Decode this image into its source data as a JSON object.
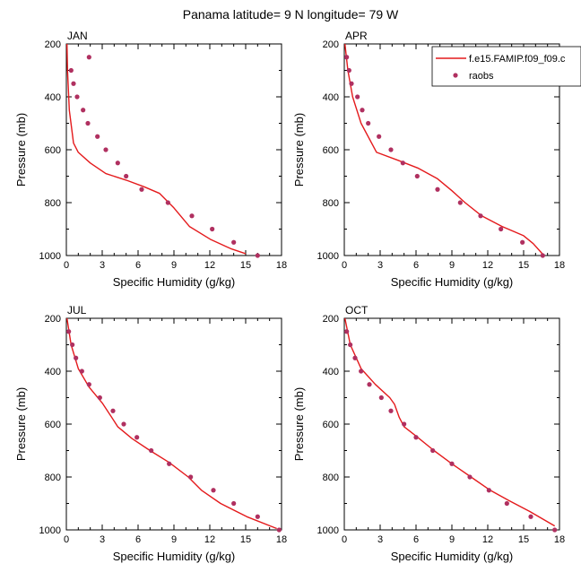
{
  "figure": {
    "title": "Panama  latitude= 9 N longitude= 79 W"
  },
  "legend": {
    "placement": "top-right",
    "entries": [
      {
        "label": "f.e15.FAMIP.f09_f09.c",
        "kind": "line",
        "color": "#e41a1c"
      },
      {
        "label": "raobs",
        "kind": "marker",
        "color": "#b03060"
      }
    ]
  },
  "chart_data": [
    {
      "type": "line",
      "panel": "JAN",
      "title": "JAN",
      "xlabel": "Specific Humidity (g/kg)",
      "ylabel": "Pressure (mb)",
      "xlim": [
        0,
        18
      ],
      "ylim": [
        1000,
        200
      ],
      "y_reversed": true,
      "xticks": [
        0,
        3,
        6,
        9,
        12,
        15,
        18
      ],
      "yticks": [
        200,
        400,
        600,
        800,
        1000
      ],
      "grid": false,
      "series": [
        {
          "name": "f.e15.FAMIP.f09_f09.c",
          "style": "line",
          "color": "#e41a1c",
          "points": [
            [
              0.05,
              200
            ],
            [
              0.1,
              300
            ],
            [
              0.25,
              450
            ],
            [
              0.6,
              575
            ],
            [
              1.0,
              610
            ],
            [
              2.0,
              650
            ],
            [
              3.3,
              690
            ],
            [
              5.0,
              715
            ],
            [
              6.5,
              740
            ],
            [
              7.8,
              765
            ],
            [
              9.0,
              820
            ],
            [
              10.3,
              890
            ],
            [
              12.1,
              940
            ],
            [
              13.8,
              975
            ],
            [
              15.0,
              993
            ]
          ]
        },
        {
          "name": "raobs",
          "style": "marker",
          "color": "#b03060",
          "points": [
            [
              0.4,
              300
            ],
            [
              0.6,
              350
            ],
            [
              0.9,
              400
            ],
            [
              1.4,
              450
            ],
            [
              1.8,
              500
            ],
            [
              2.6,
              550
            ],
            [
              3.3,
              600
            ],
            [
              4.3,
              650
            ],
            [
              5.0,
              700
            ],
            [
              6.3,
              750
            ],
            [
              8.5,
              800
            ],
            [
              10.5,
              850
            ],
            [
              12.2,
              900
            ],
            [
              14.0,
              950
            ],
            [
              16.0,
              1000
            ],
            [
              1.9,
              250
            ]
          ]
        }
      ]
    },
    {
      "type": "line",
      "panel": "APR",
      "title": "APR",
      "xlabel": "Specific Humidity (g/kg)",
      "ylabel": "Pressure (mb)",
      "xlim": [
        0,
        18
      ],
      "ylim": [
        1000,
        200
      ],
      "y_reversed": true,
      "xticks": [
        0,
        3,
        6,
        9,
        12,
        15,
        18
      ],
      "yticks": [
        200,
        400,
        600,
        800,
        1000
      ],
      "grid": false,
      "series": [
        {
          "name": "f.e15.FAMIP.f09_f09.c",
          "style": "line",
          "color": "#e41a1c",
          "points": [
            [
              0.05,
              200
            ],
            [
              0.3,
              300
            ],
            [
              0.7,
              400
            ],
            [
              1.4,
              500
            ],
            [
              2.7,
              610
            ],
            [
              4.5,
              640
            ],
            [
              6.2,
              670
            ],
            [
              7.8,
              710
            ],
            [
              9.0,
              755
            ],
            [
              10.1,
              800
            ],
            [
              11.5,
              850
            ],
            [
              13.2,
              890
            ],
            [
              15.0,
              925
            ],
            [
              15.8,
              955
            ],
            [
              16.6,
              995
            ]
          ]
        },
        {
          "name": "raobs",
          "style": "marker",
          "color": "#b03060",
          "points": [
            [
              0.2,
              250
            ],
            [
              0.4,
              300
            ],
            [
              0.6,
              350
            ],
            [
              1.1,
              400
            ],
            [
              1.5,
              450
            ],
            [
              2.0,
              500
            ],
            [
              2.9,
              550
            ],
            [
              3.9,
              600
            ],
            [
              4.9,
              650
            ],
            [
              6.1,
              700
            ],
            [
              7.8,
              750
            ],
            [
              9.7,
              800
            ],
            [
              11.4,
              850
            ],
            [
              13.1,
              900
            ],
            [
              14.9,
              950
            ],
            [
              16.6,
              1000
            ]
          ]
        }
      ]
    },
    {
      "type": "line",
      "panel": "JUL",
      "title": "JUL",
      "xlabel": "Specific Humidity (g/kg)",
      "ylabel": "Pressure (mb)",
      "xlim": [
        0,
        18
      ],
      "ylim": [
        1000,
        200
      ],
      "y_reversed": true,
      "xticks": [
        0,
        3,
        6,
        9,
        12,
        15,
        18
      ],
      "yticks": [
        200,
        400,
        600,
        800,
        1000
      ],
      "grid": false,
      "series": [
        {
          "name": "f.e15.FAMIP.f09_f09.c",
          "style": "line",
          "color": "#e41a1c",
          "points": [
            [
              0.05,
              200
            ],
            [
              0.4,
              300
            ],
            [
              1.0,
              390
            ],
            [
              1.9,
              460
            ],
            [
              3.0,
              520
            ],
            [
              3.8,
              575
            ],
            [
              4.3,
              610
            ],
            [
              5.5,
              655
            ],
            [
              7.0,
              700
            ],
            [
              8.6,
              745
            ],
            [
              10.2,
              800
            ],
            [
              11.3,
              850
            ],
            [
              12.9,
              900
            ],
            [
              15.1,
              950
            ],
            [
              17.6,
              995
            ]
          ]
        },
        {
          "name": "raobs",
          "style": "marker",
          "color": "#b03060",
          "points": [
            [
              0.2,
              250
            ],
            [
              0.5,
              300
            ],
            [
              0.8,
              350
            ],
            [
              1.3,
              400
            ],
            [
              1.9,
              450
            ],
            [
              2.8,
              500
            ],
            [
              3.9,
              550
            ],
            [
              4.8,
              600
            ],
            [
              5.9,
              650
            ],
            [
              7.1,
              700
            ],
            [
              8.6,
              750
            ],
            [
              10.4,
              800
            ],
            [
              12.3,
              850
            ],
            [
              14.0,
              900
            ],
            [
              16.0,
              950
            ],
            [
              17.8,
              1000
            ]
          ]
        }
      ]
    },
    {
      "type": "line",
      "panel": "OCT",
      "title": "OCT",
      "xlabel": "Specific Humidity (g/kg)",
      "ylabel": "Pressure (mb)",
      "xlim": [
        0,
        18
      ],
      "ylim": [
        1000,
        200
      ],
      "y_reversed": true,
      "xticks": [
        0,
        3,
        6,
        9,
        12,
        15,
        18
      ],
      "yticks": [
        200,
        400,
        600,
        800,
        1000
      ],
      "grid": false,
      "series": [
        {
          "name": "f.e15.FAMIP.f09_f09.c",
          "style": "line",
          "color": "#e41a1c",
          "points": [
            [
              0.05,
              200
            ],
            [
              0.5,
              300
            ],
            [
              1.4,
              390
            ],
            [
              2.6,
              450
            ],
            [
              3.8,
              500
            ],
            [
              4.2,
              525
            ],
            [
              4.6,
              575
            ],
            [
              5.0,
              610
            ],
            [
              6.0,
              645
            ],
            [
              7.5,
              700
            ],
            [
              9.0,
              750
            ],
            [
              10.6,
              800
            ],
            [
              12.2,
              850
            ],
            [
              13.8,
              890
            ],
            [
              15.5,
              930
            ],
            [
              17.6,
              985
            ]
          ]
        },
        {
          "name": "raobs",
          "style": "marker",
          "color": "#b03060",
          "points": [
            [
              0.2,
              250
            ],
            [
              0.5,
              300
            ],
            [
              0.9,
              350
            ],
            [
              1.4,
              400
            ],
            [
              2.1,
              450
            ],
            [
              3.1,
              500
            ],
            [
              3.9,
              550
            ],
            [
              5.0,
              600
            ],
            [
              6.0,
              650
            ],
            [
              7.4,
              700
            ],
            [
              9.0,
              750
            ],
            [
              10.5,
              800
            ],
            [
              12.1,
              850
            ],
            [
              13.6,
              900
            ],
            [
              15.6,
              950
            ],
            [
              17.6,
              1000
            ]
          ]
        }
      ]
    }
  ]
}
